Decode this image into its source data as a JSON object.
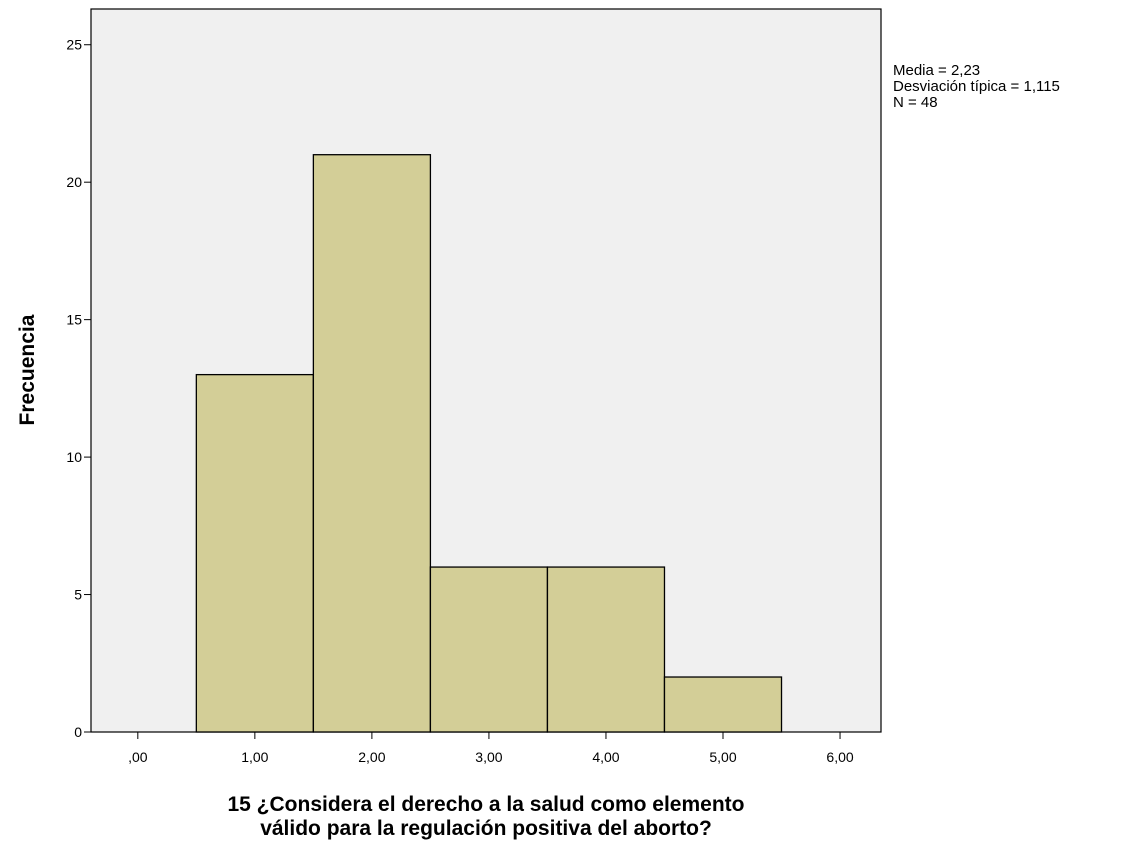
{
  "chart_data": {
    "type": "bar",
    "title": "",
    "xlabel_lines": [
      "15 ¿Considera el derecho a la salud como elemento",
      "válido para la regulación positiva del aborto?"
    ],
    "ylabel": "Frecuencia",
    "x_ticks": [
      ",00",
      "1,00",
      "2,00",
      "3,00",
      "4,00",
      "5,00",
      "6,00"
    ],
    "x_tick_values": [
      0,
      1,
      2,
      3,
      4,
      5,
      6
    ],
    "y_ticks": [
      "0",
      "5",
      "10",
      "15",
      "20",
      "25"
    ],
    "y_tick_values": [
      0,
      5,
      10,
      15,
      20,
      25
    ],
    "xlim": [
      -0.4,
      6.35
    ],
    "ylim": [
      0,
      26.3
    ],
    "bins": [
      {
        "x0": 0.5,
        "x1": 1.5,
        "value": 13
      },
      {
        "x0": 1.5,
        "x1": 2.5,
        "value": 21
      },
      {
        "x0": 2.5,
        "x1": 3.5,
        "value": 6
      },
      {
        "x0": 3.5,
        "x1": 4.5,
        "value": 6
      },
      {
        "x0": 4.5,
        "x1": 5.5,
        "value": 2
      }
    ],
    "grid": false,
    "colors": {
      "bar_fill": "#d3ce97",
      "bar_stroke": "#000000",
      "plot_bg": "#f0f0f0"
    }
  },
  "stats": {
    "mean": "Media = 2,23",
    "std": "Desviación típica = 1,115",
    "n": "N = 48"
  }
}
